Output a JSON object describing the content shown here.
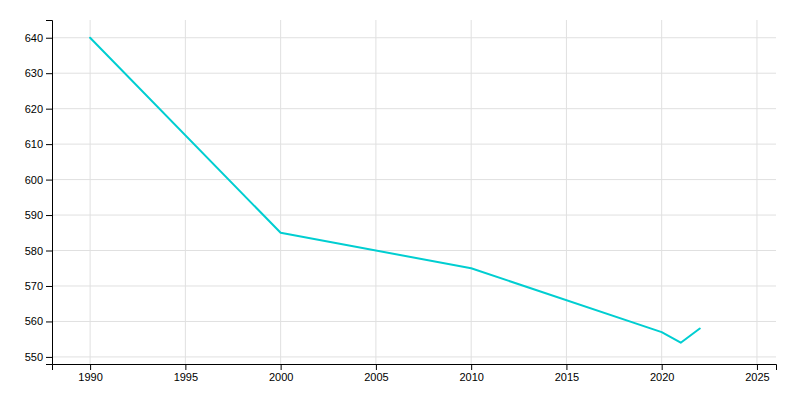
{
  "chart_data": {
    "type": "line",
    "x": [
      1990,
      2000,
      2010,
      2020,
      2021,
      2022
    ],
    "values": [
      640,
      585,
      575,
      557,
      554,
      558
    ],
    "color": "#00CED1",
    "xlim": [
      1988,
      2026
    ],
    "ylim": [
      548,
      645
    ],
    "xticks": [
      1990,
      1995,
      2000,
      2005,
      2010,
      2015,
      2020,
      2025
    ],
    "yticks": [
      550,
      560,
      570,
      580,
      590,
      600,
      610,
      620,
      630,
      640
    ],
    "grid": true
  }
}
